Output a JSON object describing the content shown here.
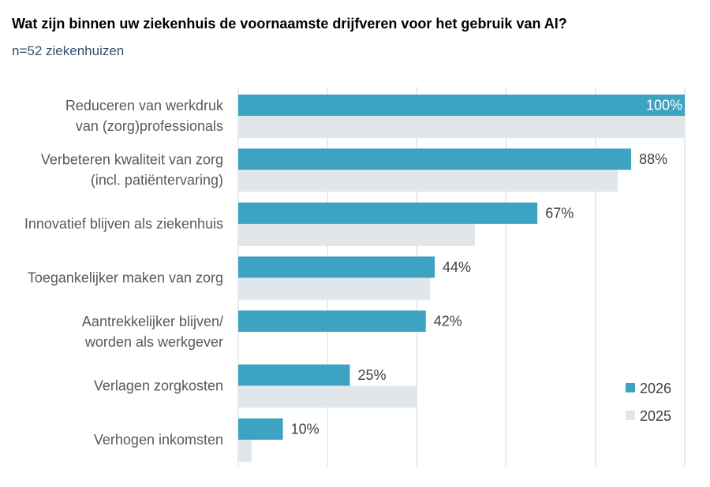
{
  "chart_data": {
    "type": "bar",
    "orientation": "horizontal",
    "title": "Wat zijn binnen uw ziekenhuis de voornaamste drijfveren voor het gebruik van AI?",
    "subtitle": "n=52 ziekenhuizen",
    "categories": [
      "Reduceren van werkdruk\nvan (zorg)professionals",
      "Verbeteren kwaliteit van zorg\n(incl. patiëntervaring)",
      "Innovatief blijven als ziekenhuis",
      "Toegankelijker maken van zorg",
      "Aantrekkelijker blijven/\nworden als werkgever",
      "Verlagen zorgkosten",
      "Verhogen inkomsten"
    ],
    "series": [
      {
        "name": "2026",
        "values": [
          100,
          88,
          67,
          44,
          42,
          25,
          10
        ],
        "data_labels": [
          "100%",
          "88%",
          "67%",
          "44%",
          "42%",
          "25%",
          "10%"
        ],
        "color": "#3DA3C2"
      },
      {
        "name": "2025",
        "values": [
          100,
          85,
          53,
          43,
          null,
          40,
          3
        ],
        "color": "#E1E6EB"
      }
    ],
    "xlim": [
      0,
      100
    ],
    "xgrid": [
      0,
      20,
      40,
      60,
      80,
      100
    ],
    "grid": true,
    "legend": "bottom-right"
  }
}
